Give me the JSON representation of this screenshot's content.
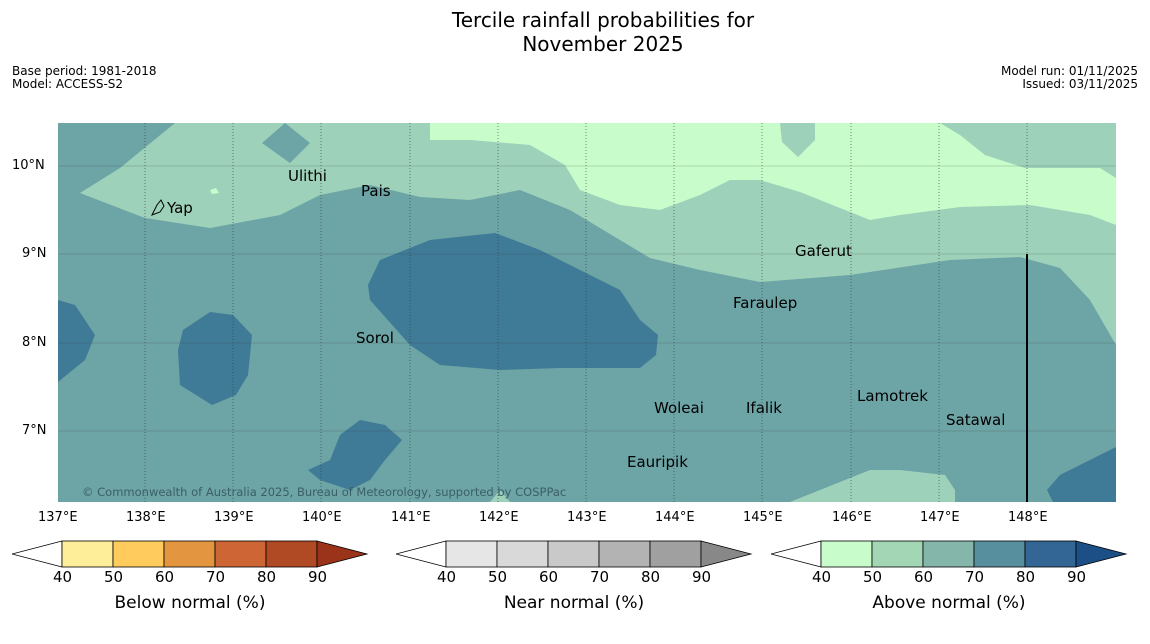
{
  "title_line1": "Tercile rainfall probabilities for",
  "title_line2": "November 2025",
  "base_period": "Base period: 1981-2018",
  "model": "Model: ACCESS-S2",
  "model_run": "Model run: 01/11/2025",
  "issued": "Issued: 03/11/2025",
  "copyright": "© Commonwealth of Australia 2025, Bureau of Meteorology, supported by COSPPac",
  "lon_labels": [
    "137°E",
    "138°E",
    "139°E",
    "140°E",
    "141°E",
    "142°E",
    "143°E",
    "144°E",
    "145°E",
    "146°E",
    "147°E",
    "148°E"
  ],
  "lat_labels": [
    "10°N",
    "9°N",
    "8°N",
    "7°N"
  ],
  "places": [
    {
      "name": "Ulithi"
    },
    {
      "name": "Pais"
    },
    {
      "name": "Yap"
    },
    {
      "name": "Gaferut"
    },
    {
      "name": "Faraulep"
    },
    {
      "name": "Sorol"
    },
    {
      "name": "Woleai"
    },
    {
      "name": "Ifalik"
    },
    {
      "name": "Lamotrek"
    },
    {
      "name": "Satawal"
    },
    {
      "name": "Eauripik"
    }
  ],
  "colorbars": [
    {
      "title": "Below normal (%)",
      "ticks": [
        "40",
        "50",
        "60",
        "70",
        "80",
        "90"
      ],
      "colors": [
        "#ffee99",
        "#fecb5c",
        "#e3953f",
        "#cd6534",
        "#b04a24",
        "#9a3319"
      ]
    },
    {
      "title": "Near normal (%)",
      "ticks": [
        "40",
        "50",
        "60",
        "70",
        "80",
        "90"
      ],
      "colors": [
        "#e6e6e6",
        "#d9d9d9",
        "#c9c9c9",
        "#b3b3b3",
        "#a0a0a0",
        "#888888"
      ]
    },
    {
      "title": "Above normal (%)",
      "ticks": [
        "40",
        "50",
        "60",
        "70",
        "80",
        "90"
      ],
      "colors": [
        "#c8fcca",
        "#a2d6b5",
        "#84b6aa",
        "#588f9e",
        "#336694",
        "#1b4f85"
      ]
    }
  ],
  "map_colors": {
    "c50": "#c8fcca",
    "c60": "#9ed1b9",
    "c70": "#6da4a6",
    "c80": "#3f7a96"
  }
}
